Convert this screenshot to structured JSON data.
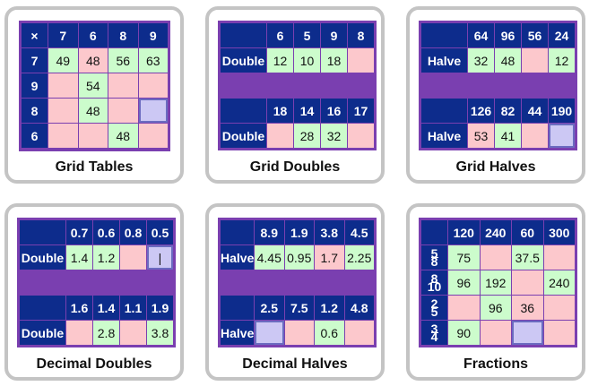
{
  "cards": [
    {
      "caption": "Grid Tables",
      "corner": "×",
      "cols": [
        "7",
        "6",
        "8",
        "9"
      ],
      "rows": [
        {
          "head": "7",
          "cells": [
            {
              "v": "49",
              "c": "gr"
            },
            {
              "v": "48",
              "c": "pk"
            },
            {
              "v": "56",
              "c": "gr"
            },
            {
              "v": "63",
              "c": "gr"
            }
          ]
        },
        {
          "head": "9",
          "cells": [
            {
              "v": "",
              "c": "pk"
            },
            {
              "v": "54",
              "c": "gr"
            },
            {
              "v": "",
              "c": "pk"
            },
            {
              "v": "",
              "c": "pk"
            }
          ]
        },
        {
          "head": "8",
          "cells": [
            {
              "v": "",
              "c": "pk"
            },
            {
              "v": "48",
              "c": "gr"
            },
            {
              "v": "",
              "c": "pk"
            },
            {
              "v": "",
              "c": "sel"
            }
          ]
        },
        {
          "head": "6",
          "cells": [
            {
              "v": "",
              "c": "pk"
            },
            {
              "v": "",
              "c": "pk"
            },
            {
              "v": "48",
              "c": "gr"
            },
            {
              "v": "",
              "c": "pk"
            }
          ]
        }
      ]
    },
    {
      "caption": "Grid Doubles",
      "label": "Double",
      "blocks": [
        {
          "cols": [
            "6",
            "5",
            "9",
            "8"
          ],
          "cells": [
            {
              "v": "12",
              "c": "gr"
            },
            {
              "v": "10",
              "c": "gr"
            },
            {
              "v": "18",
              "c": "gr"
            },
            {
              "v": "",
              "c": "pk"
            }
          ]
        },
        {
          "cols": [
            "18",
            "14",
            "16",
            "17"
          ],
          "cells": [
            {
              "v": "",
              "c": "pk"
            },
            {
              "v": "28",
              "c": "gr"
            },
            {
              "v": "32",
              "c": "gr"
            },
            {
              "v": "",
              "c": "pk"
            }
          ]
        }
      ]
    },
    {
      "caption": "Grid Halves",
      "label": "Halve",
      "blocks": [
        {
          "cols": [
            "64",
            "96",
            "56",
            "24"
          ],
          "cells": [
            {
              "v": "32",
              "c": "gr"
            },
            {
              "v": "48",
              "c": "gr"
            },
            {
              "v": "",
              "c": "pk"
            },
            {
              "v": "12",
              "c": "gr"
            }
          ]
        },
        {
          "cols": [
            "126",
            "82",
            "44",
            "190"
          ],
          "cells": [
            {
              "v": "53",
              "c": "pk"
            },
            {
              "v": "41",
              "c": "gr"
            },
            {
              "v": "",
              "c": "pk"
            },
            {
              "v": "",
              "c": "sel"
            }
          ]
        }
      ]
    },
    {
      "caption": "Decimal Doubles",
      "label": "Double",
      "blocks": [
        {
          "cols": [
            "0.7",
            "0.6",
            "0.8",
            "0.5"
          ],
          "cells": [
            {
              "v": "1.4",
              "c": "gr"
            },
            {
              "v": "1.2",
              "c": "gr"
            },
            {
              "v": "",
              "c": "pk"
            },
            {
              "v": "|",
              "c": "sel"
            }
          ]
        },
        {
          "cols": [
            "1.6",
            "1.4",
            "1.1",
            "1.9"
          ],
          "cells": [
            {
              "v": "",
              "c": "pk"
            },
            {
              "v": "2.8",
              "c": "gr"
            },
            {
              "v": "",
              "c": "pk"
            },
            {
              "v": "3.8",
              "c": "gr"
            }
          ]
        }
      ]
    },
    {
      "caption": "Decimal Halves",
      "label": "Halve",
      "blocks": [
        {
          "cols": [
            "8.9",
            "1.9",
            "3.8",
            "4.5"
          ],
          "cells": [
            {
              "v": "4.45",
              "c": "gr"
            },
            {
              "v": "0.95",
              "c": "gr"
            },
            {
              "v": "1.7",
              "c": "pk"
            },
            {
              "v": "2.25",
              "c": "gr"
            }
          ]
        },
        {
          "cols": [
            "2.5",
            "7.5",
            "1.2",
            "4.8"
          ],
          "cells": [
            {
              "v": "",
              "c": "sel"
            },
            {
              "v": "",
              "c": "pk"
            },
            {
              "v": "0.6",
              "c": "gr"
            },
            {
              "v": "",
              "c": "pk"
            }
          ]
        }
      ]
    },
    {
      "caption": "Fractions",
      "cols": [
        "120",
        "240",
        "60",
        "300"
      ],
      "rows": [
        {
          "num": "5",
          "den": "8",
          "cells": [
            {
              "v": "75",
              "c": "gr"
            },
            {
              "v": "",
              "c": "pk"
            },
            {
              "v": "37.5",
              "c": "gr"
            },
            {
              "v": "",
              "c": "pk"
            }
          ]
        },
        {
          "num": "8",
          "den": "10",
          "cells": [
            {
              "v": "96",
              "c": "gr"
            },
            {
              "v": "192",
              "c": "gr"
            },
            {
              "v": "",
              "c": "pk"
            },
            {
              "v": "240",
              "c": "gr"
            }
          ]
        },
        {
          "num": "2",
          "den": "5",
          "cells": [
            {
              "v": "",
              "c": "pk"
            },
            {
              "v": "96",
              "c": "gr"
            },
            {
              "v": "36",
              "c": "pk"
            },
            {
              "v": "",
              "c": "pk"
            }
          ]
        },
        {
          "num": "3",
          "den": "4",
          "cells": [
            {
              "v": "90",
              "c": "gr"
            },
            {
              "v": "",
              "c": "pk"
            },
            {
              "v": "",
              "c": "sel"
            },
            {
              "v": "",
              "c": "pk"
            }
          ]
        }
      ]
    }
  ],
  "colors": {
    "header": "#0d2c8c",
    "correct": "#ccfccc",
    "wrong": "#fcc8cc",
    "selected": "#ccc8f4",
    "band": "#7a3fb0",
    "border": "#c4c4c4"
  }
}
